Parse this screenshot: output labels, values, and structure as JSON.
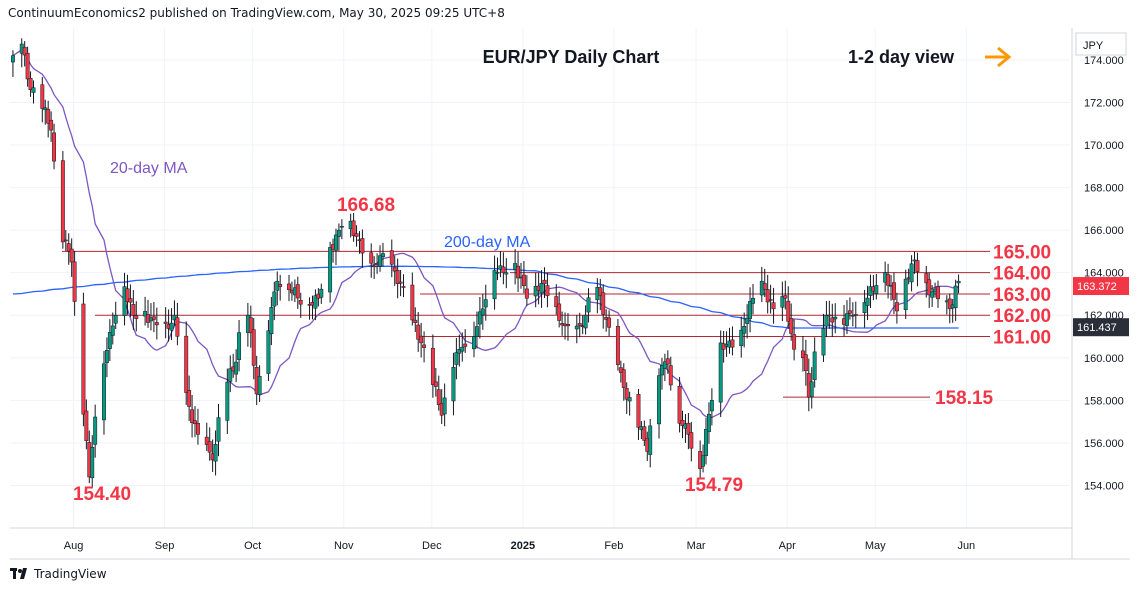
{
  "header": {
    "publisher_line": "ContinuumEconomics2 published on TradingView.com, May 30, 2025 09:25 UTC+8"
  },
  "footer": {
    "brand": "TradingView"
  },
  "colors": {
    "candle_up": "#089981",
    "candle_down": "#f23645",
    "ma20": "#7e57c2",
    "ma200": "#2962ff",
    "level_line": "#b22833",
    "label_red": "#f23645",
    "arrow": "#ff9800",
    "grid": "#f0f3fa",
    "last_price_bg": "#f23645"
  },
  "chart_data": {
    "type": "line",
    "title": "EUR/JPY Daily Chart",
    "subtitle": "1-2 day view",
    "currency": "JPY",
    "xlabel": "",
    "ylabel": "",
    "ylim": [
      152.0,
      175.5
    ],
    "y_ticks": [
      "154.000",
      "156.000",
      "158.000",
      "160.000",
      "162.000",
      "164.000",
      "166.000",
      "168.000",
      "170.000",
      "172.000",
      "174.000"
    ],
    "x_ticks": [
      "Aug",
      "Sep",
      "Oct",
      "Nov",
      "Dec",
      "2025",
      "Feb",
      "Mar",
      "Apr",
      "May",
      "Jun"
    ],
    "levels": [
      {
        "label": "165.00",
        "value": 165.0
      },
      {
        "label": "164.00",
        "value": 164.0
      },
      {
        "label": "163.00",
        "value": 163.0
      },
      {
        "label": "162.00",
        "value": 162.0
      },
      {
        "label": "161.00",
        "value": 161.0
      }
    ],
    "annotations": [
      {
        "text": "166.68",
        "value": 166.68
      },
      {
        "text": "154.40",
        "value": 154.4
      },
      {
        "text": "154.79",
        "value": 154.79
      },
      {
        "text": "158.15",
        "value": 158.15
      },
      {
        "text": "20-day MA"
      },
      {
        "text": "200-day MA"
      }
    ],
    "last_price": "163.372",
    "ma_value_label": "161.437",
    "series": [
      {
        "name": "Price",
        "points": [
          [
            "Jul 10",
            174.2
          ],
          [
            "Jul 12",
            175.3
          ],
          [
            "Jul 16",
            172.6
          ],
          [
            "Jul 19",
            172.1
          ],
          [
            "Jul 23",
            170.7
          ],
          [
            "Jul 26",
            166.0
          ],
          [
            "Jul 30",
            164.5
          ],
          [
            "Aug 1",
            161.0
          ],
          [
            "Aug 5",
            154.4
          ],
          [
            "Aug 8",
            159.0
          ],
          [
            "Aug 13",
            161.5
          ],
          [
            "Aug 16",
            163.9
          ],
          [
            "Aug 20",
            162.0
          ],
          [
            "Aug 23",
            162.2
          ],
          [
            "Aug 27",
            161.8
          ],
          [
            "Aug 30",
            161.2
          ],
          [
            "Sep 3",
            162.0
          ],
          [
            "Sep 6",
            158.6
          ],
          [
            "Sep 11",
            156.4
          ],
          [
            "Sep 16",
            155.2
          ],
          [
            "Sep 20",
            158.5
          ],
          [
            "Sep 24",
            159.8
          ],
          [
            "Sep 27",
            163.4
          ],
          [
            "Oct 1",
            158.3
          ],
          [
            "Oct 4",
            160.8
          ],
          [
            "Oct 8",
            163.6
          ],
          [
            "Oct 12",
            163.2
          ],
          [
            "Oct 17",
            162.6
          ],
          [
            "Oct 22",
            162.8
          ],
          [
            "Oct 25",
            164.9
          ],
          [
            "Oct 29",
            166.0
          ],
          [
            "Oct 31",
            166.68
          ],
          [
            "Nov 4",
            165.7
          ],
          [
            "Nov 8",
            164.0
          ],
          [
            "Nov 12",
            164.8
          ],
          [
            "Nov 15",
            164.4
          ],
          [
            "Nov 19",
            163.5
          ],
          [
            "Nov 22",
            162.0
          ],
          [
            "Nov 26",
            160.7
          ],
          [
            "Nov 29",
            159.3
          ],
          [
            "Dec 3",
            157.3
          ],
          [
            "Dec 6",
            159.5
          ],
          [
            "Dec 10",
            160.5
          ],
          [
            "Dec 14",
            161.0
          ],
          [
            "Dec 17",
            162.3
          ],
          [
            "Dec 20",
            164.4
          ],
          [
            "Dec 24",
            164.0
          ],
          [
            "Dec 27",
            164.9
          ],
          [
            "Jan 1",
            162.8
          ],
          [
            "Jan 6",
            163.5
          ],
          [
            "Jan 10",
            162.4
          ],
          [
            "Jan 14",
            161.5
          ],
          [
            "Jan 17",
            161.0
          ],
          [
            "Jan 21",
            162.0
          ],
          [
            "Jan 24",
            163.6
          ],
          [
            "Jan 28",
            161.8
          ],
          [
            "Feb 3",
            158.6
          ],
          [
            "Feb 7",
            157.3
          ],
          [
            "Feb 11",
            155.6
          ],
          [
            "Feb 14",
            159.3
          ],
          [
            "Feb 18",
            159.7
          ],
          [
            "Feb 21",
            157.4
          ],
          [
            "Feb 25",
            156.4
          ],
          [
            "Mar 1",
            154.79
          ],
          [
            "Mar 5",
            158.0
          ],
          [
            "Mar 8",
            160.7
          ],
          [
            "Mar 12",
            160.5
          ],
          [
            "Mar 15",
            161.3
          ],
          [
            "Mar 19",
            162.8
          ],
          [
            "Mar 22",
            163.6
          ],
          [
            "Mar 26",
            162.3
          ],
          [
            "Mar 30",
            162.8
          ],
          [
            "Apr 2",
            160.4
          ],
          [
            "Apr 5",
            160.0
          ],
          [
            "Apr 7",
            158.15
          ],
          [
            "Apr 10",
            161.0
          ],
          [
            "Apr 14",
            162.0
          ],
          [
            "Apr 18",
            161.7
          ],
          [
            "Apr 22",
            162.0
          ],
          [
            "Apr 26",
            162.6
          ],
          [
            "Apr 30",
            163.4
          ],
          [
            "May 3",
            164.0
          ],
          [
            "May 7",
            162.2
          ],
          [
            "May 10",
            163.7
          ],
          [
            "May 13",
            164.6
          ],
          [
            "May 16",
            163.5
          ],
          [
            "May 19",
            163.1
          ],
          [
            "May 22",
            162.6
          ],
          [
            "May 25",
            162.3
          ],
          [
            "May 28",
            163.6
          ],
          [
            "May 30",
            163.372
          ]
        ]
      }
    ]
  }
}
